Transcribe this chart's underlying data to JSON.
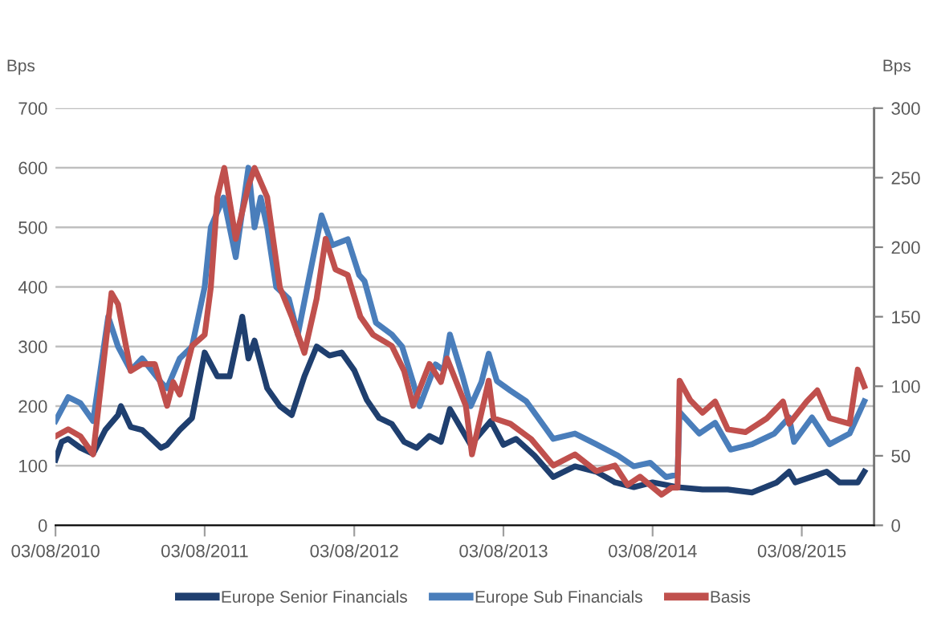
{
  "chart_data": {
    "type": "line",
    "ylabel": "Bps",
    "y2label": "Bps",
    "xlim": [
      "2010-08-03",
      "2016-01-27"
    ],
    "xticks": [
      {
        "value": "2010-08-03",
        "label": "03/08/2010"
      },
      {
        "value": "2011-08-03",
        "label": "03/08/2011"
      },
      {
        "value": "2012-08-03",
        "label": "03/08/2012"
      },
      {
        "value": "2013-08-03",
        "label": "03/08/2013"
      },
      {
        "value": "2014-08-03",
        "label": "03/08/2014"
      },
      {
        "value": "2015-08-03",
        "label": "03/08/2015"
      }
    ],
    "ylim": [
      0,
      700
    ],
    "yticks": [
      0,
      100,
      200,
      300,
      400,
      500,
      600,
      700
    ],
    "y2lim": [
      0,
      300
    ],
    "y2ticks": [
      0,
      50,
      100,
      150,
      200,
      250,
      300
    ],
    "grid": "y",
    "legend": "bottom",
    "series": [
      {
        "name": "Europe Senior Financials",
        "color": "#1f3f6f",
        "x": [
          "2010-08-03",
          "2010-08-18",
          "2010-09-03",
          "2010-10-03",
          "2010-11-03",
          "2010-12-03",
          "2011-01-03",
          "2011-01-10",
          "2011-02-03",
          "2011-03-03",
          "2011-04-03",
          "2011-04-18",
          "2011-05-03",
          "2011-06-03",
          "2011-07-03",
          "2011-08-03",
          "2011-09-03",
          "2011-10-03",
          "2011-11-03",
          "2011-11-18",
          "2011-12-03",
          "2012-01-03",
          "2012-02-03",
          "2012-03-03",
          "2012-04-03",
          "2012-05-03",
          "2012-06-03",
          "2012-07-03",
          "2012-08-03",
          "2012-09-03",
          "2012-10-03",
          "2012-11-03",
          "2012-12-03",
          "2013-01-03",
          "2013-02-03",
          "2013-03-03",
          "2013-03-25",
          "2013-05-15",
          "2013-07-03",
          "2013-08-03",
          "2013-09-03",
          "2013-10-18",
          "2013-12-03",
          "2014-01-25",
          "2014-03-18",
          "2014-05-03",
          "2014-06-18",
          "2014-08-03",
          "2014-09-03",
          "2014-10-03",
          "2014-12-03",
          "2015-02-03",
          "2015-04-03",
          "2015-06-03",
          "2015-07-03",
          "2015-07-18",
          "2015-10-03",
          "2015-11-03",
          "2015-12-18",
          "2016-01-03"
        ],
        "values": [
          110,
          140,
          145,
          130,
          120,
          160,
          185,
          200,
          165,
          160,
          140,
          130,
          135,
          160,
          180,
          290,
          250,
          250,
          350,
          280,
          310,
          230,
          200,
          185,
          250,
          300,
          285,
          290,
          260,
          210,
          180,
          170,
          140,
          130,
          150,
          140,
          195,
          135,
          175,
          135,
          145,
          117,
          81,
          99,
          90,
          72,
          64,
          72,
          68,
          64,
          60,
          60,
          55,
          72,
          90,
          72,
          90,
          72,
          72,
          90
        ]
      },
      {
        "name": "Europe Sub Financials",
        "color": "#4a7ebb",
        "x": [
          "2010-08-03",
          "2010-09-03",
          "2010-10-03",
          "2010-11-03",
          "2010-12-10",
          "2011-01-03",
          "2011-02-03",
          "2011-03-03",
          "2011-04-18",
          "2011-05-03",
          "2011-06-03",
          "2011-07-03",
          "2011-08-03",
          "2011-08-18",
          "2011-09-18",
          "2011-10-18",
          "2011-11-18",
          "2011-12-03",
          "2011-12-18",
          "2012-01-03",
          "2012-01-25",
          "2012-02-25",
          "2012-03-18",
          "2012-04-10",
          "2012-05-15",
          "2012-06-10",
          "2012-07-18",
          "2012-08-15",
          "2012-08-28",
          "2012-09-25",
          "2012-11-03",
          "2012-11-28",
          "2012-12-25",
          "2013-01-10",
          "2013-02-18",
          "2013-03-10",
          "2013-03-25",
          "2013-04-25",
          "2013-05-15",
          "2013-06-10",
          "2013-06-28",
          "2013-07-18",
          "2013-08-20",
          "2013-09-28",
          "2013-12-03",
          "2014-01-25",
          "2014-03-18",
          "2014-05-10",
          "2014-06-18",
          "2014-07-28",
          "2014-09-05",
          "2014-10-03",
          "2014-10-08",
          "2014-11-25",
          "2015-01-03",
          "2015-02-10",
          "2015-04-03",
          "2015-05-28",
          "2015-07-03",
          "2015-07-15",
          "2015-08-28",
          "2015-10-10",
          "2015-11-28",
          "2016-01-03"
        ],
        "values": [
          175,
          215,
          205,
          175,
          350,
          300,
          260,
          280,
          240,
          230,
          280,
          300,
          400,
          500,
          550,
          450,
          600,
          500,
          550,
          500,
          400,
          380,
          320,
          400,
          520,
          470,
          480,
          420,
          410,
          340,
          320,
          300,
          240,
          200,
          270,
          260,
          320,
          250,
          200,
          240,
          288,
          242,
          226,
          208,
          145,
          154,
          136,
          117,
          99,
          105,
          81,
          85,
          190,
          154,
          172,
          127,
          136,
          154,
          181,
          140,
          181,
          136,
          154,
          208
        ]
      },
      {
        "name": "Basis",
        "color": "#c0504d",
        "axis": "y2",
        "x": [
          "2010-08-03",
          "2010-09-03",
          "2010-10-03",
          "2010-11-03",
          "2010-12-18",
          "2011-01-03",
          "2011-02-03",
          "2011-03-03",
          "2011-04-03",
          "2011-05-03",
          "2011-05-18",
          "2011-06-03",
          "2011-07-03",
          "2011-08-03",
          "2011-08-18",
          "2011-09-03",
          "2011-09-20",
          "2011-10-18",
          "2011-11-18",
          "2011-12-03",
          "2012-01-03",
          "2012-02-03",
          "2012-03-03",
          "2012-04-03",
          "2012-05-03",
          "2012-05-25",
          "2012-06-18",
          "2012-07-18",
          "2012-08-18",
          "2012-09-18",
          "2012-11-03",
          "2012-12-03",
          "2012-12-25",
          "2013-02-03",
          "2013-03-03",
          "2013-03-18",
          "2013-05-03",
          "2013-05-18",
          "2013-06-28",
          "2013-07-10",
          "2013-08-20",
          "2013-10-10",
          "2013-12-03",
          "2014-01-25",
          "2014-03-18",
          "2014-05-03",
          "2014-06-03",
          "2014-07-03",
          "2014-08-25",
          "2014-09-18",
          "2014-10-03",
          "2014-10-08",
          "2014-11-03",
          "2014-12-03",
          "2015-01-03",
          "2015-02-03",
          "2015-03-18",
          "2015-05-10",
          "2015-06-18",
          "2015-07-03",
          "2015-08-15",
          "2015-09-10",
          "2015-10-10",
          "2015-11-28",
          "2015-12-18",
          "2016-01-03"
        ],
        "values": [
          64,
          69,
          64,
          51,
          167,
          159,
          111,
          116,
          116,
          86,
          103,
          94,
          129,
          137,
          171,
          236,
          257,
          206,
          244,
          257,
          236,
          171,
          150,
          124,
          163,
          206,
          184,
          180,
          150,
          137,
          129,
          111,
          86,
          116,
          103,
          120,
          86,
          51,
          104,
          77,
          73,
          62,
          43,
          51,
          39,
          43,
          29,
          35,
          22,
          27,
          27,
          104,
          90,
          81,
          89,
          69,
          67,
          77,
          89,
          73,
          89,
          97,
          77,
          73,
          112,
          100
        ]
      }
    ]
  }
}
